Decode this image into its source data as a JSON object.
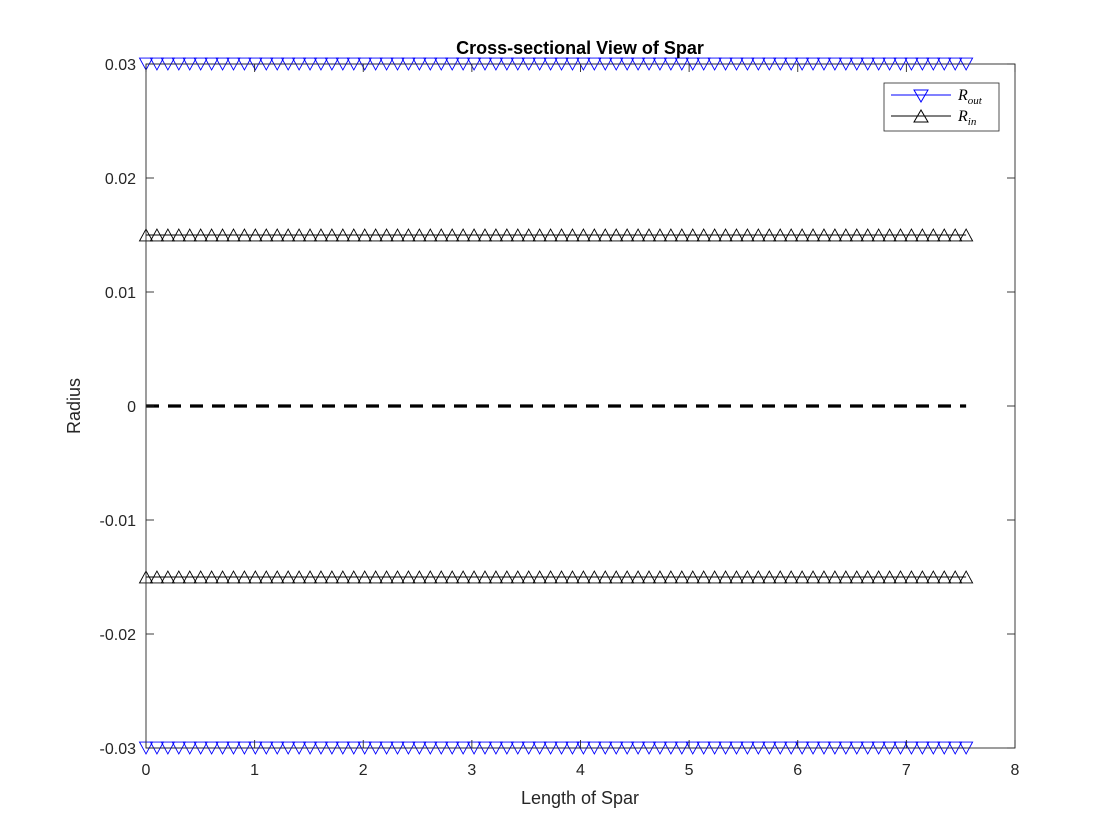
{
  "chart_data": {
    "type": "line",
    "title": "Cross-sectional View of Spar",
    "xlabel": "Length of Spar",
    "ylabel": "Radius",
    "xlim": [
      0,
      8
    ],
    "ylim": [
      -0.03,
      0.03
    ],
    "x_ticks": [
      "0",
      "1",
      "2",
      "3",
      "4",
      "5",
      "6",
      "7",
      "8"
    ],
    "y_ticks": [
      "-0.03",
      "-0.02",
      "-0.01",
      "0",
      "0.01",
      "0.02",
      "0.03"
    ],
    "grid": false,
    "legend_position": "top-right",
    "x_range_of_data": [
      0,
      7.55
    ],
    "marker_count": 76,
    "series": [
      {
        "name": "R_out",
        "legend_base": "R",
        "legend_sub": "out",
        "color": "#0000ff",
        "marker": "triangle-down",
        "y": 0.03,
        "mirrored": true
      },
      {
        "name": "R_in",
        "legend_base": "R",
        "legend_sub": "in",
        "color": "#000000",
        "marker": "triangle-up",
        "y": 0.015,
        "mirrored": true
      },
      {
        "name": "centerline",
        "color": "#000000",
        "style": "dashed",
        "y": 0
      }
    ]
  }
}
